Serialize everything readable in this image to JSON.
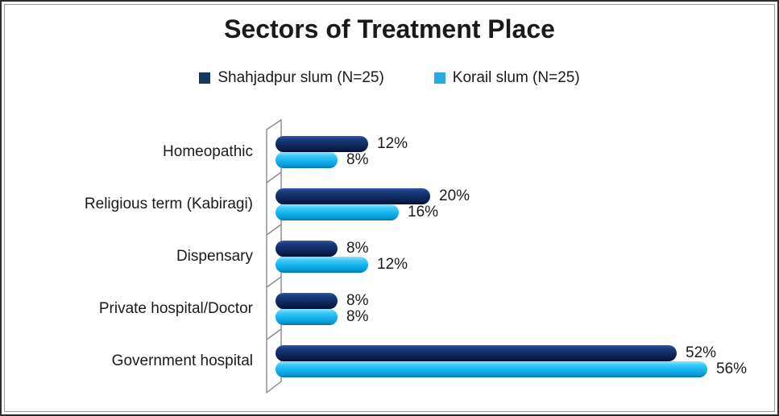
{
  "frame": {
    "background": "#ffffff",
    "outer_border_color": "#2d2d2d",
    "inner_border_color": "#9b9b9b"
  },
  "chart": {
    "title": "Sectors of Treatment Place"
  },
  "chart_data": {
    "type": "bar",
    "orientation": "horizontal",
    "style": "3d-cylinder",
    "title": "Sectors of Treatment Place",
    "categories": [
      "Homeopathic",
      "Religious term (Kabiragi)",
      "Dispensary",
      "Private hospital/Doctor",
      "Government hospital"
    ],
    "series": [
      {
        "name": "Shahjadpur slum (N=25)",
        "color": "#17375E",
        "values": [
          12,
          20,
          8,
          8,
          52
        ],
        "data_labels": [
          "12%",
          "20%",
          "8%",
          "8%",
          "52%"
        ]
      },
      {
        "name": "Korail slum (N=25)",
        "color": "#29ABE2",
        "values": [
          8,
          16,
          12,
          8,
          56
        ],
        "data_labels": [
          "8%",
          "16%",
          "12%",
          "8%",
          "56%"
        ]
      }
    ],
    "xlabel": "",
    "ylabel": "",
    "xlim": [
      0,
      60
    ],
    "grid": false,
    "legend_position": "top",
    "data_label_format": "0%",
    "axis_wall_color": "#8a8a8a",
    "category_order": "top-to-bottom"
  }
}
